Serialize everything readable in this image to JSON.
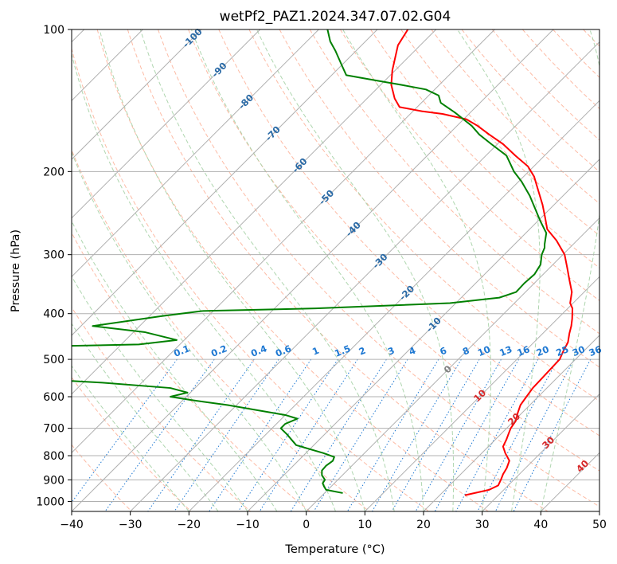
{
  "chart_data": {
    "type": "skew-t",
    "title": "wetPf2_PAZ1.2024.347.07.02.G04",
    "xlabel": "Temperature (°C)",
    "ylabel": "Pressure (hPa)",
    "xlim": [
      -40,
      50
    ],
    "ylim": [
      1050,
      100
    ],
    "y_scale": "log",
    "x_ticks": [
      -40,
      -30,
      -20,
      -10,
      0,
      10,
      20,
      30,
      40,
      50
    ],
    "x_tick_labels": [
      "−40",
      "−30",
      "−20",
      "−10",
      "0",
      "10",
      "20",
      "30",
      "40",
      "50"
    ],
    "y_ticks": [
      100,
      200,
      300,
      400,
      500,
      600,
      700,
      800,
      900,
      1000
    ],
    "y_tick_labels": [
      "100",
      "200",
      "300",
      "400",
      "500",
      "600",
      "700",
      "800",
      "900",
      "1000"
    ],
    "grid": true,
    "colors": {
      "temperature": "#ff0000",
      "dewpoint": "#008000",
      "isotherm": "#b0b0b0",
      "dry_adiabat": "#fcaa8f",
      "moist_adiabat": "#a6d2a6",
      "mixing_ratio": "#1e78d2",
      "isotherm_label": "#2a6aa6",
      "dry_adiabat_label": "#d62728",
      "zero_label": "#808080"
    },
    "series": [
      {
        "key": "temperature",
        "points": [
          [
            24.3,
            970
          ],
          [
            27.5,
            945
          ],
          [
            28.3,
            925
          ],
          [
            27.8,
            900
          ],
          [
            27.2,
            875
          ],
          [
            26.8,
            850
          ],
          [
            26.0,
            820
          ],
          [
            24.0,
            790
          ],
          [
            22.5,
            765
          ],
          [
            21.9,
            740
          ],
          [
            21.3,
            720
          ],
          [
            20.7,
            700
          ],
          [
            20.3,
            675
          ],
          [
            19.3,
            650
          ],
          [
            18.4,
            625
          ],
          [
            18.0,
            600
          ],
          [
            17.6,
            575
          ],
          [
            17.5,
            550
          ],
          [
            17.4,
            525
          ],
          [
            17.3,
            500
          ],
          [
            16.5,
            480
          ],
          [
            15.8,
            460
          ],
          [
            14.5,
            440
          ],
          [
            13.6,
            425
          ],
          [
            12.5,
            410
          ],
          [
            10.8,
            390
          ],
          [
            9.5,
            380
          ],
          [
            7.9,
            360
          ],
          [
            5.5,
            340
          ],
          [
            3.0,
            320
          ],
          [
            0.3,
            300
          ],
          [
            -3.5,
            280
          ],
          [
            -7.0,
            265
          ],
          [
            -9.4,
            250
          ],
          [
            -12.0,
            235
          ],
          [
            -15.0,
            220
          ],
          [
            -18.2,
            205
          ],
          [
            -21.0,
            195
          ],
          [
            -25.0,
            185
          ],
          [
            -29.0,
            175
          ],
          [
            -33.0,
            167
          ],
          [
            -36.5,
            160
          ],
          [
            -39.5,
            155
          ],
          [
            -44.5,
            151
          ],
          [
            -48.5,
            149
          ],
          [
            -53.0,
            146
          ],
          [
            -55.3,
            140
          ],
          [
            -58.2,
            131
          ],
          [
            -60.5,
            122
          ],
          [
            -62.1,
            115
          ],
          [
            -63.8,
            108
          ],
          [
            -64.8,
            100
          ]
        ]
      },
      {
        "key": "dewpoint",
        "points": [
          [
            3.1,
            960
          ],
          [
            -0.3,
            945
          ],
          [
            -1.2,
            930
          ],
          [
            -2.0,
            915
          ],
          [
            -2.2,
            900
          ],
          [
            -3.5,
            880
          ],
          [
            -4.3,
            860
          ],
          [
            -4.4,
            840
          ],
          [
            -4.1,
            820
          ],
          [
            -4.5,
            805
          ],
          [
            -7.0,
            790
          ],
          [
            -13.0,
            760
          ],
          [
            -16.5,
            720
          ],
          [
            -18.5,
            700
          ],
          [
            -18.5,
            685
          ],
          [
            -17.3,
            668
          ],
          [
            -20.0,
            656
          ],
          [
            -31.5,
            625
          ],
          [
            -38.5,
            610
          ],
          [
            -42.7,
            600
          ],
          [
            -40.5,
            588
          ],
          [
            -44.2,
            575
          ],
          [
            -57.0,
            560
          ],
          [
            -75.0,
            545
          ],
          [
            -75.0,
            470
          ],
          [
            -57.0,
            465
          ],
          [
            -51.3,
            455
          ],
          [
            -58.0,
            438
          ],
          [
            -68.0,
            425
          ],
          [
            -58.0,
            405
          ],
          [
            -52.0,
            395
          ],
          [
            -33.0,
            390
          ],
          [
            -11.0,
            380
          ],
          [
            -3.5,
            370
          ],
          [
            -1.6,
            360
          ],
          [
            -1.7,
            345
          ],
          [
            -1.5,
            330
          ],
          [
            -2.1,
            315
          ],
          [
            -3.6,
            300
          ],
          [
            -4.3,
            290
          ],
          [
            -4.9,
            285
          ],
          [
            -6.5,
            270
          ],
          [
            -9.5,
            255
          ],
          [
            -12.5,
            240
          ],
          [
            -15.7,
            225
          ],
          [
            -19.5,
            210
          ],
          [
            -22.5,
            200
          ],
          [
            -26.5,
            185
          ],
          [
            -31.0,
            175
          ],
          [
            -34.7,
            167
          ],
          [
            -37.5,
            160
          ],
          [
            -42.6,
            150
          ],
          [
            -46.7,
            143
          ],
          [
            -48.3,
            138
          ],
          [
            -51.5,
            134
          ],
          [
            -56.5,
            131
          ],
          [
            -62.0,
            128
          ],
          [
            -67.5,
            125
          ],
          [
            -70.0,
            119
          ],
          [
            -73.5,
            111
          ],
          [
            -76.0,
            106
          ],
          [
            -78.5,
            100
          ]
        ]
      }
    ],
    "isotherm_labels": [
      "-100",
      "-90",
      "-80",
      "-70",
      "-60",
      "-50",
      "-40",
      "-30",
      "-20",
      "-10",
      "0"
    ],
    "dry_adiabat_labels": [
      "10",
      "20",
      "30",
      "40"
    ],
    "mixing_ratio_labels": [
      "0.1",
      "0.2",
      "0.4",
      "0.6",
      "1",
      "1.5",
      "2",
      "3",
      "4",
      "6",
      "8",
      "10",
      "13",
      "16",
      "20",
      "25",
      "30",
      "36"
    ]
  }
}
